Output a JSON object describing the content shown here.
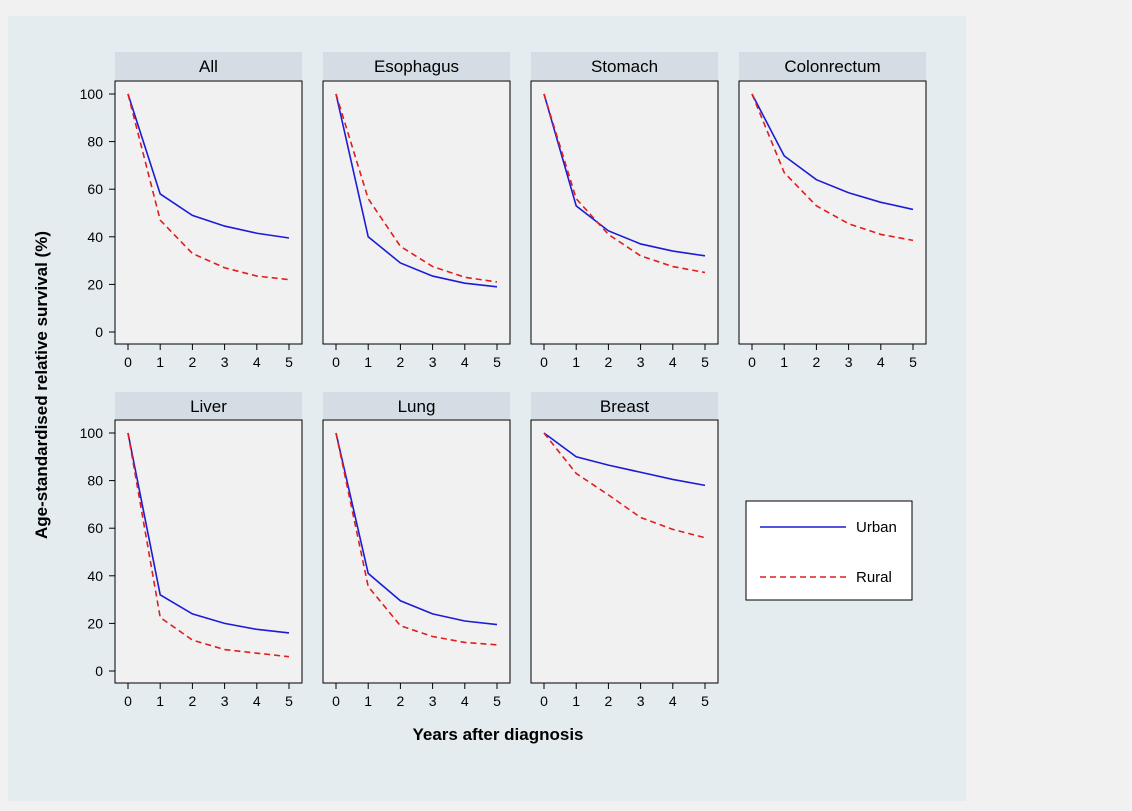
{
  "chart_data": {
    "type": "line",
    "ylabel": "Age-standardised relative survival (%)",
    "xlabel": "Years after diagnosis",
    "x": [
      0,
      1,
      2,
      3,
      4,
      5
    ],
    "xlim": [
      0,
      5
    ],
    "ylim": [
      0,
      100
    ],
    "xticks": [
      0,
      1,
      2,
      3,
      4,
      5
    ],
    "yticks": [
      0,
      20,
      40,
      60,
      80,
      100
    ],
    "grid": false,
    "legend": {
      "position": "right",
      "entries": [
        {
          "name": "Urban",
          "color": "#1c1cd6",
          "style": "solid"
        },
        {
          "name": "Rural",
          "color": "#e01e1e",
          "style": "dashed"
        }
      ]
    },
    "panels": [
      {
        "title": "All",
        "series": [
          {
            "name": "Urban",
            "values": [
              100,
              58,
              49,
              44.5,
              41.5,
              39.5
            ]
          },
          {
            "name": "Rural",
            "values": [
              100,
              47,
              33,
              27,
              23.5,
              22
            ]
          }
        ]
      },
      {
        "title": "Esophagus",
        "series": [
          {
            "name": "Urban",
            "values": [
              100,
              40,
              29,
              23.5,
              20.5,
              19
            ]
          },
          {
            "name": "Rural",
            "values": [
              100,
              56,
              36,
              27.5,
              23,
              21
            ]
          }
        ]
      },
      {
        "title": "Stomach",
        "series": [
          {
            "name": "Urban",
            "values": [
              100,
              53,
              42.5,
              37,
              34,
              32
            ]
          },
          {
            "name": "Rural",
            "values": [
              100,
              56,
              41,
              32,
              27.5,
              25
            ]
          }
        ]
      },
      {
        "title": "Colonrectum",
        "series": [
          {
            "name": "Urban",
            "values": [
              100,
              74,
              64,
              58.5,
              54.5,
              51.5
            ]
          },
          {
            "name": "Rural",
            "values": [
              100,
              67,
              53,
              45.5,
              41,
              38.5
            ]
          }
        ]
      },
      {
        "title": "Liver",
        "series": [
          {
            "name": "Urban",
            "values": [
              100,
              32,
              24,
              20,
              17.5,
              16
            ]
          },
          {
            "name": "Rural",
            "values": [
              100,
              22.5,
              13,
              9,
              7.5,
              6
            ]
          }
        ]
      },
      {
        "title": "Lung",
        "series": [
          {
            "name": "Urban",
            "values": [
              100,
              41,
              29.5,
              24,
              21,
              19.5
            ]
          },
          {
            "name": "Rural",
            "values": [
              100,
              35.5,
              19,
              14.5,
              12,
              11
            ]
          }
        ]
      },
      {
        "title": "Breast",
        "series": [
          {
            "name": "Urban",
            "values": [
              100,
              90,
              86.5,
              83.5,
              80.5,
              78
            ]
          },
          {
            "name": "Rural",
            "values": [
              100,
              83,
              74,
              64.5,
              59.5,
              56
            ]
          }
        ]
      }
    ]
  },
  "colors": {
    "figure_background": "#e5ecef",
    "panel_background": "#f1f1f1",
    "strip_background": "#d4dde3"
  }
}
